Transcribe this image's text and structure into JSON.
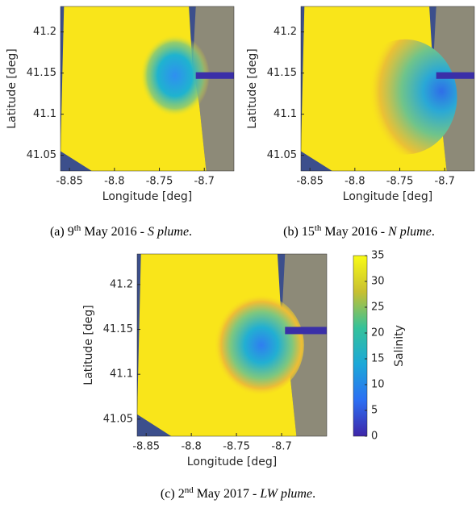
{
  "panels": [
    {
      "xlabel": "Longitude [deg]",
      "ylabel": "Latitude [deg]",
      "xlim": [
        -8.86,
        -8.667
      ],
      "ylim": [
        41.031,
        41.231
      ],
      "xticks": [
        -8.85,
        -8.8,
        -8.75,
        -8.7
      ],
      "yticks": [
        41.05,
        41.1,
        41.15,
        41.2
      ],
      "caption": {
        "label": "(a)",
        "day": "9",
        "suffix": "th",
        "date": "May 2016 -",
        "plume": "S plume",
        "end": "."
      }
    },
    {
      "xlabel": "Longitude [deg]",
      "ylabel": "Latitude [deg]",
      "xlim": [
        -8.86,
        -8.667
      ],
      "ylim": [
        41.031,
        41.231
      ],
      "xticks": [
        -8.85,
        -8.8,
        -8.75,
        -8.7
      ],
      "yticks": [
        41.05,
        41.1,
        41.15,
        41.2
      ],
      "caption": {
        "label": "(b)",
        "day": "15",
        "suffix": "th",
        "date": "May 2016 -",
        "plume": "N plume",
        "end": "."
      }
    },
    {
      "xlabel": "Longitude [deg]",
      "ylabel": "Latitude [deg]",
      "xlim": [
        -8.86,
        -8.65
      ],
      "ylim": [
        41.031,
        41.234
      ],
      "xticks": [
        -8.85,
        -8.8,
        -8.75,
        -8.7
      ],
      "yticks": [
        41.05,
        41.1,
        41.15,
        41.2
      ],
      "caption": {
        "label": "(c)",
        "day": "2",
        "suffix": "nd",
        "date": "May 2017 -",
        "plume": "LW plume",
        "end": "."
      }
    }
  ],
  "colorbar": {
    "label": "Salinity",
    "lim": [
      0,
      35
    ],
    "ticks": [
      0,
      5,
      10,
      15,
      20,
      25,
      30,
      35
    ]
  }
}
